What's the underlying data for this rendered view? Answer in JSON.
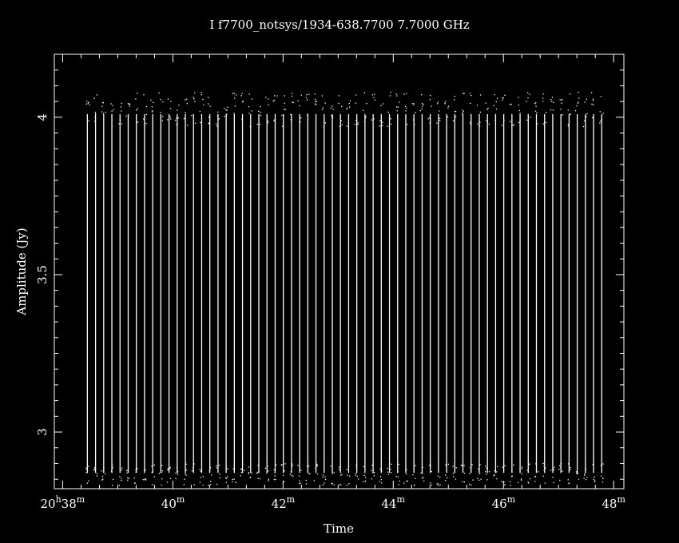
{
  "chart_data": {
    "type": "scatter",
    "title": "I f7700_notsys/1934-638.7700  7.7000 GHz",
    "xlabel": "Time",
    "ylabel": "Amplitude (Jy)",
    "xlim": [
      20.6308,
      20.8031
    ],
    "ylim": [
      2.82,
      4.2
    ],
    "x_ticks": [
      {
        "value": 20.6333,
        "label_main": "20",
        "label_sup_h": "h",
        "label_min": "38",
        "label_sup_m": "m"
      },
      {
        "value": 20.6667,
        "label_main": "40",
        "label_sup_m": "m"
      },
      {
        "value": 20.7,
        "label_main": "42",
        "label_sup_m": "m"
      },
      {
        "value": 20.7333,
        "label_main": "44",
        "label_sup_m": "m"
      },
      {
        "value": 20.7667,
        "label_main": "46",
        "label_sup_m": "m"
      },
      {
        "value": 20.8,
        "label_main": "48",
        "label_sup_m": "m"
      }
    ],
    "y_ticks": [
      {
        "value": 3.0,
        "label": "3"
      },
      {
        "value": 3.5,
        "label": "3.5"
      },
      {
        "value": 4.0,
        "label": "4"
      }
    ],
    "series": [
      {
        "x_start": 20.6408,
        "x_end": 20.7964,
        "channels": 64,
        "y_low": 2.86,
        "y_high": 4.02,
        "y_spread_low": 2.83,
        "y_spread_high": 4.08
      }
    ],
    "grid": false,
    "legend": "none",
    "colors": {
      "background": "#000000",
      "axes": "#ffffff",
      "points": "#ffffff"
    }
  }
}
